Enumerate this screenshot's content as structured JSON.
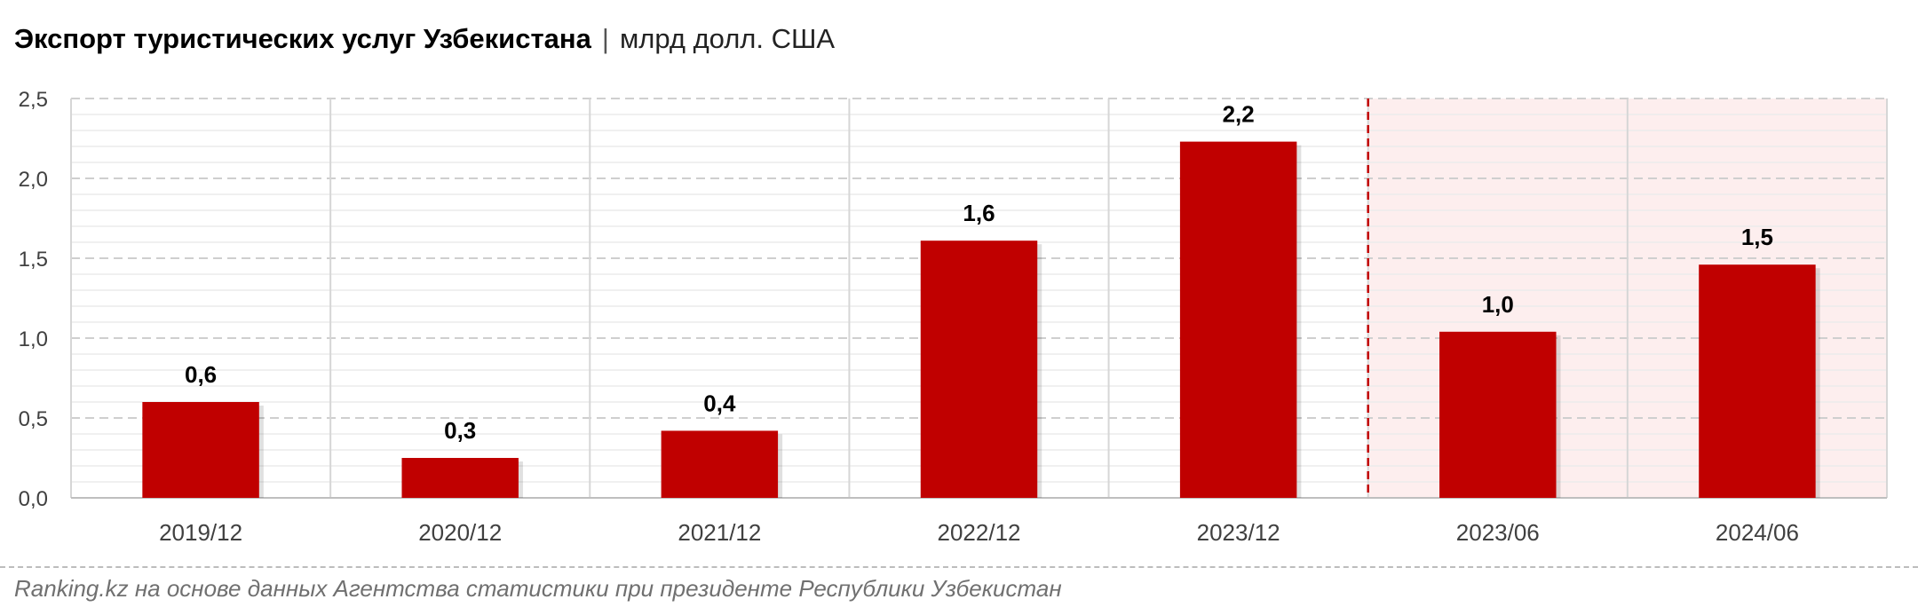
{
  "title": {
    "main": "Экспорт туристических услуг Узбекистана",
    "separator": "|",
    "unit": "млрд долл. США"
  },
  "source": "Ranking.kz на основе данных Агентства статистики при президенте Республики Узбекистан",
  "colors": {
    "bar": "#c00000",
    "highlight_band": "#fdeeee",
    "divider": "#c00000",
    "grid": "#d9d9d9",
    "axis_text": "#404040",
    "label_text": "#000000"
  },
  "chart_data": {
    "type": "bar",
    "categories": [
      "2019/12",
      "2020/12",
      "2021/12",
      "2022/12",
      "2023/12",
      "2023/06",
      "2024/06"
    ],
    "values": [
      0.6,
      0.25,
      0.42,
      1.61,
      2.23,
      1.04,
      1.46
    ],
    "value_labels": [
      "0,6",
      "0,3",
      "0,4",
      "1,6",
      "2,2",
      "1,0",
      "1,5"
    ],
    "ylim": [
      0,
      2.5
    ],
    "yticks": [
      0,
      0.5,
      1.0,
      1.5,
      2.0,
      2.5
    ],
    "ytick_labels": [
      "0,0",
      "0,5",
      "1,0",
      "1,5",
      "2,0",
      "2,5"
    ],
    "highlighted_categories": [
      "2023/06",
      "2024/06"
    ],
    "grid": true,
    "legend": "none",
    "xlabel": "",
    "ylabel": ""
  }
}
